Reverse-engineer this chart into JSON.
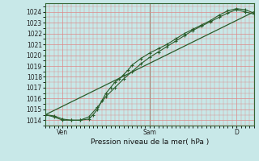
{
  "xlabel": "Pression niveau de la mer( hPa )",
  "outer_bg": "#c8e8e8",
  "plot_bg": "#c8e8e8",
  "grid_color_major": "#dd8888",
  "grid_color_minor": "#dd8888",
  "line_color": "#2a5c2a",
  "ylim": [
    1013.5,
    1024.8
  ],
  "xlim": [
    0,
    48
  ],
  "yticks": [
    1014,
    1015,
    1016,
    1017,
    1018,
    1019,
    1020,
    1021,
    1022,
    1023,
    1024
  ],
  "xtick_positions": [
    4,
    24,
    44
  ],
  "xtick_labels": [
    "Ven",
    "Sam",
    "D"
  ],
  "vline_x": 24,
  "series1_x": [
    0,
    2,
    4,
    6,
    8,
    10,
    11,
    12,
    13,
    14,
    15,
    16,
    17,
    18,
    19,
    20,
    22,
    24,
    26,
    28,
    30,
    32,
    34,
    36,
    38,
    40,
    42,
    44,
    46,
    48
  ],
  "series1_y": [
    1014.5,
    1014.4,
    1014.1,
    1014.0,
    1014.0,
    1014.1,
    1014.5,
    1015.0,
    1015.8,
    1016.5,
    1017.0,
    1017.5,
    1017.8,
    1018.2,
    1018.6,
    1019.1,
    1019.7,
    1020.2,
    1020.6,
    1021.0,
    1021.5,
    1022.0,
    1022.4,
    1022.8,
    1023.2,
    1023.7,
    1024.1,
    1024.3,
    1024.2,
    1023.9
  ],
  "series2_x": [
    0,
    2,
    4,
    6,
    8,
    10,
    12,
    14,
    16,
    18,
    20,
    22,
    24,
    26,
    28,
    30,
    32,
    34,
    36,
    38,
    40,
    42,
    44,
    46,
    48
  ],
  "series2_y": [
    1014.5,
    1014.3,
    1014.0,
    1014.0,
    1014.0,
    1014.3,
    1015.2,
    1016.2,
    1017.0,
    1017.8,
    1018.5,
    1019.2,
    1019.8,
    1020.3,
    1020.8,
    1021.3,
    1021.8,
    1022.3,
    1022.7,
    1023.1,
    1023.5,
    1023.9,
    1024.2,
    1024.0,
    1023.8
  ],
  "series3_x": [
    0,
    48
  ],
  "series3_y": [
    1014.5,
    1024.0
  ]
}
